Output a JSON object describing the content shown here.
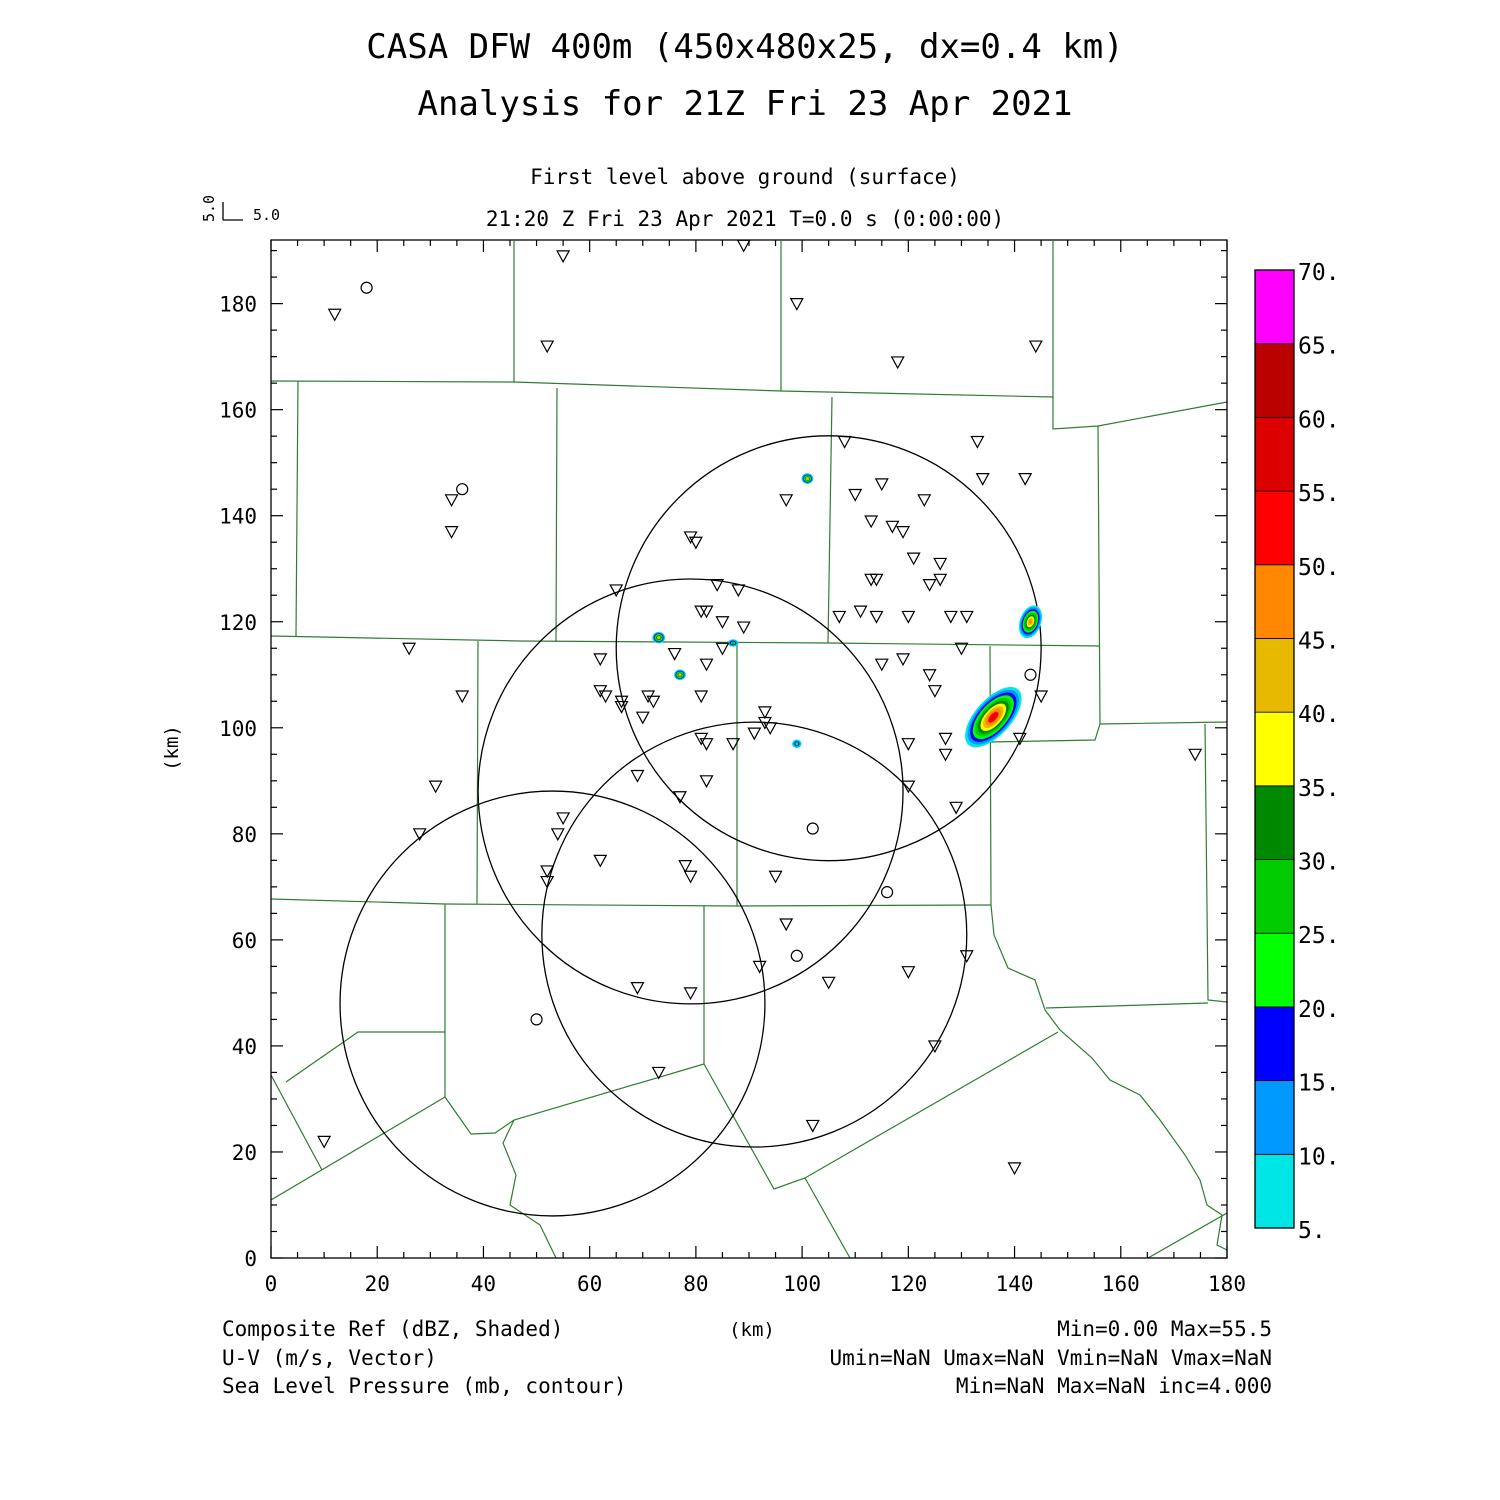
{
  "header": {
    "title": "CASA DFW 400m (450x480x25, dx=0.4 km)",
    "subtitle": "Analysis for 21Z Fri 23 Apr 2021",
    "level": "First level above ground (surface)",
    "time": "21:20 Z Fri 23 Apr 2021    T=0.0 s (0:00:00)"
  },
  "vector_key": {
    "u": "5.0",
    "v": "5.0"
  },
  "axes": {
    "xlabel": "(km)",
    "ylabel": "(km)",
    "x_ticks": [
      0,
      20,
      40,
      60,
      80,
      100,
      120,
      140,
      160,
      180
    ],
    "y_ticks": [
      0,
      20,
      40,
      60,
      80,
      100,
      120,
      140,
      160,
      180
    ],
    "xlim": [
      0,
      180
    ],
    "ylim": [
      0,
      192
    ]
  },
  "colorbar": {
    "labels": [
      "5.",
      "10.",
      "15.",
      "20.",
      "25.",
      "30.",
      "35.",
      "40.",
      "45.",
      "50.",
      "55.",
      "60.",
      "65.",
      "70."
    ],
    "colors": [
      "#00e6e6",
      "#0099ff",
      "#0000ff",
      "#00ff00",
      "#00cc00",
      "#008800",
      "#ffff00",
      "#e6b800",
      "#ff8800",
      "#ff0000",
      "#dd0000",
      "#bb0000",
      "#ff00ff"
    ]
  },
  "footer": {
    "left": [
      "Composite Ref (dBZ, Shaded)",
      "U-V (m/s, Vector)",
      "Sea Level Pressure (mb, contour)"
    ],
    "center": "(km)",
    "right": [
      "Min=0.00 Max=55.5",
      "Umin=NaN Umax=NaN Vmin=NaN Vmax=NaN",
      "Min=NaN Max=NaN inc=4.000"
    ]
  },
  "radar_rings": [
    {
      "center_km": [
        105,
        115
      ],
      "radius_km": 40
    },
    {
      "center_km": [
        79,
        88
      ],
      "radius_km": 40
    },
    {
      "center_km": [
        91,
        61
      ],
      "radius_km": 40
    },
    {
      "center_km": [
        53,
        48
      ],
      "radius_km": 40
    }
  ],
  "reflectivity_cells": [
    {
      "center_km": [
        136,
        102
      ],
      "rx_km": 7,
      "ry_km": 3.4,
      "angle_deg": -48,
      "max_dbz": 55.5
    },
    {
      "center_km": [
        143,
        120
      ],
      "rx_km": 3.2,
      "ry_km": 2.0,
      "angle_deg": -70,
      "max_dbz": 47
    },
    {
      "center_km": [
        101,
        147
      ],
      "rx_km": 1.1,
      "ry_km": 1.0,
      "angle_deg": 0,
      "max_dbz": 40
    },
    {
      "center_km": [
        73,
        117
      ],
      "rx_km": 1.2,
      "ry_km": 1.1,
      "angle_deg": 0,
      "max_dbz": 42
    },
    {
      "center_km": [
        77,
        110
      ],
      "rx_km": 1.1,
      "ry_km": 1.0,
      "angle_deg": 0,
      "max_dbz": 40
    },
    {
      "center_km": [
        87,
        116
      ],
      "rx_km": 1.0,
      "ry_km": 0.7,
      "angle_deg": 0,
      "max_dbz": 25
    },
    {
      "center_km": [
        99,
        97
      ],
      "rx_km": 0.9,
      "ry_km": 0.8,
      "angle_deg": 0,
      "max_dbz": 20
    }
  ],
  "stations_triangle": [
    [
      12,
      178
    ],
    [
      55,
      189
    ],
    [
      89,
      191
    ],
    [
      52,
      172
    ],
    [
      99,
      180
    ],
    [
      118,
      169
    ],
    [
      144,
      172
    ],
    [
      34,
      143
    ],
    [
      34,
      137
    ],
    [
      108,
      154
    ],
    [
      133,
      154
    ],
    [
      134,
      147
    ],
    [
      142,
      147
    ],
    [
      97,
      143
    ],
    [
      110,
      144
    ],
    [
      115,
      146
    ],
    [
      123,
      143
    ],
    [
      79,
      136
    ],
    [
      80,
      135
    ],
    [
      113,
      139
    ],
    [
      117,
      138
    ],
    [
      119,
      137
    ],
    [
      121,
      132
    ],
    [
      126,
      131
    ],
    [
      126,
      128
    ],
    [
      124,
      127
    ],
    [
      113,
      128
    ],
    [
      114,
      128
    ],
    [
      65,
      126
    ],
    [
      84,
      127
    ],
    [
      88,
      126
    ],
    [
      107,
      121
    ],
    [
      111,
      122
    ],
    [
      114,
      121
    ],
    [
      120,
      121
    ],
    [
      128,
      121
    ],
    [
      131,
      121
    ],
    [
      81,
      122
    ],
    [
      82,
      122
    ],
    [
      85,
      120
    ],
    [
      89,
      119
    ],
    [
      85,
      115
    ],
    [
      26,
      115
    ],
    [
      62,
      113
    ],
    [
      76,
      114
    ],
    [
      82,
      112
    ],
    [
      115,
      112
    ],
    [
      119,
      113
    ],
    [
      124,
      110
    ],
    [
      125,
      107
    ],
    [
      130,
      115
    ],
    [
      36,
      106
    ],
    [
      62,
      107
    ],
    [
      63,
      106
    ],
    [
      66,
      105
    ],
    [
      66,
      104
    ],
    [
      71,
      106
    ],
    [
      72,
      105
    ],
    [
      70,
      102
    ],
    [
      81,
      106
    ],
    [
      93,
      103
    ],
    [
      93,
      101
    ],
    [
      94,
      100
    ],
    [
      91,
      99
    ],
    [
      81,
      98
    ],
    [
      82,
      97
    ],
    [
      87,
      97
    ],
    [
      127,
      98
    ],
    [
      127,
      95
    ],
    [
      120,
      97
    ],
    [
      141,
      98
    ],
    [
      145,
      106
    ],
    [
      31,
      89
    ],
    [
      69,
      91
    ],
    [
      82,
      90
    ],
    [
      120,
      89
    ],
    [
      77,
      87
    ],
    [
      28,
      80
    ],
    [
      55,
      83
    ],
    [
      54,
      80
    ],
    [
      129,
      85
    ],
    [
      62,
      75
    ],
    [
      78,
      74
    ],
    [
      79,
      72
    ],
    [
      52,
      73
    ],
    [
      52,
      71
    ],
    [
      95,
      72
    ],
    [
      97,
      63
    ],
    [
      92,
      55
    ],
    [
      131,
      57
    ],
    [
      120,
      54
    ],
    [
      105,
      52
    ],
    [
      69,
      51
    ],
    [
      79,
      50
    ],
    [
      125,
      40
    ],
    [
      73,
      35
    ],
    [
      10,
      22
    ],
    [
      102,
      25
    ],
    [
      140,
      17
    ],
    [
      174,
      95
    ]
  ],
  "stations_circle": [
    [
      18,
      183
    ],
    [
      36,
      145
    ],
    [
      143,
      110
    ],
    [
      102,
      81
    ],
    [
      116,
      69
    ],
    [
      99,
      57
    ],
    [
      50,
      45
    ]
  ]
}
